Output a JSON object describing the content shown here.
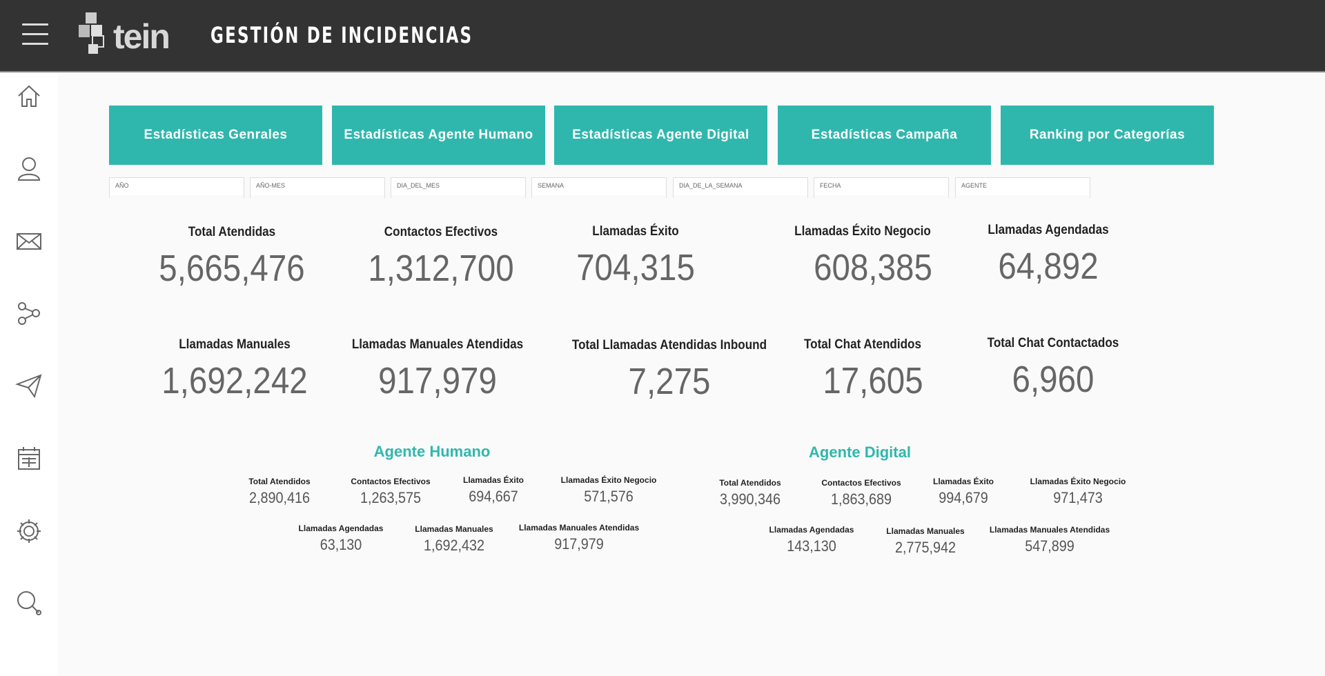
{
  "header": {
    "logo_text": "tein",
    "title": "GESTIÓN DE INCIDENCIAS"
  },
  "sidebar": {
    "icons": [
      "home-icon",
      "user-icon",
      "mail-icon",
      "share-icon",
      "send-icon",
      "calendar-icon",
      "gear-icon",
      "search-icon"
    ]
  },
  "nav": [
    "Estadísticas Genrales",
    "Estadísticas Agente Humano",
    "Estadísticas Agente Digital",
    "Estadísticas Campaña",
    "Ranking por Categorías"
  ],
  "filters": [
    "AÑO",
    "AÑO-MES",
    "DIA_DEL_MES",
    "SEMANA",
    "DIA_DE_LA_SEMANA",
    "FECHA",
    "AGENTE"
  ],
  "kpis": [
    {
      "label": "Total Atendidas",
      "value": "5,665,476"
    },
    {
      "label": "Contactos Efectivos",
      "value": "1,312,700"
    },
    {
      "label": "Llamadas Éxito",
      "value": "704,315"
    },
    {
      "label": "Llamadas Éxito Negocio",
      "value": "608,385"
    },
    {
      "label": "Llamadas Agendadas",
      "value": "64,892"
    },
    {
      "label": "Llamadas Manuales",
      "value": "1,692,242"
    },
    {
      "label": "Llamadas Manuales Atendidas",
      "value": "917,979"
    },
    {
      "label": "Total Llamadas Atendidas Inbound",
      "value": "7,275"
    },
    {
      "label": "Total Chat Atendidos",
      "value": "17,605"
    },
    {
      "label": "Total Chat Contactados",
      "value": "6,960"
    }
  ],
  "humano": {
    "title": "Agente Humano",
    "items": [
      {
        "label": "Total Atendidos",
        "value": "2,890,416"
      },
      {
        "label": "Contactos Efectivos",
        "value": "1,263,575"
      },
      {
        "label": "Llamadas Éxito",
        "value": "694,667"
      },
      {
        "label": "Llamadas Éxito Negocio",
        "value": "571,576"
      },
      {
        "label": "Llamadas Agendadas",
        "value": "63,130"
      },
      {
        "label": "Llamadas Manuales",
        "value": "1,692,432"
      },
      {
        "label": "Llamadas Manuales Atendidas",
        "value": "917,979"
      }
    ]
  },
  "digital": {
    "title": "Agente Digital",
    "items": [
      {
        "label": "Total Atendidos",
        "value": "3,990,346"
      },
      {
        "label": "Contactos Efectivos",
        "value": "1,863,689"
      },
      {
        "label": "Llamadas Éxito",
        "value": "994,679"
      },
      {
        "label": "Llamadas Éxito Negocio",
        "value": "971,473"
      },
      {
        "label": "Llamadas Agendadas",
        "value": "143,130"
      },
      {
        "label": "Llamadas Manuales",
        "value": "2,775,942"
      },
      {
        "label": "Llamadas Manuales Atendidas",
        "value": "547,899"
      }
    ]
  }
}
